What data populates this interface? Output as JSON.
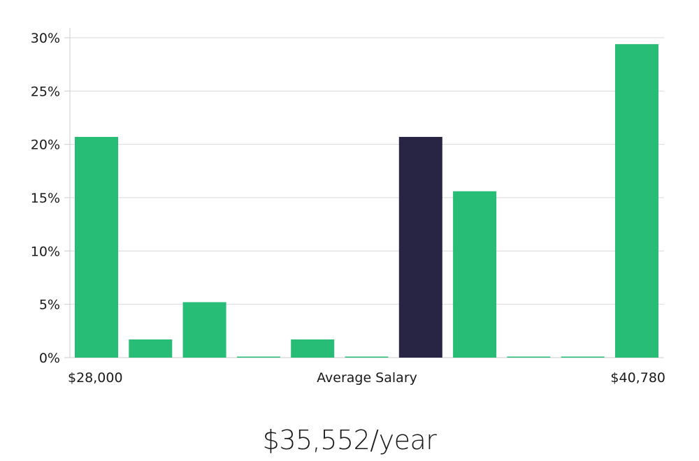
{
  "chart_data": {
    "type": "bar",
    "title": "",
    "xlabel": "Average Salary",
    "ylabel": "",
    "x_range_labels": {
      "min": "$28,000",
      "max": "$40,780"
    },
    "values": [
      20.7,
      1.7,
      5.2,
      0,
      1.7,
      0,
      20.7,
      15.6,
      0,
      0,
      29.4
    ],
    "highlight_index": 6,
    "ylim": [
      0,
      30
    ],
    "yticks": [
      0,
      5,
      10,
      15,
      20,
      25,
      30
    ],
    "ytick_labels": [
      "0%",
      "5%",
      "10%",
      "15%",
      "20%",
      "25%",
      "30%"
    ],
    "grid": true,
    "colors": {
      "bar": "#28bd77",
      "highlight": "#272444",
      "grid": "#d9d9d9",
      "axis": "#cccccc"
    }
  },
  "summary": {
    "salary_text": "$35,552/year"
  }
}
